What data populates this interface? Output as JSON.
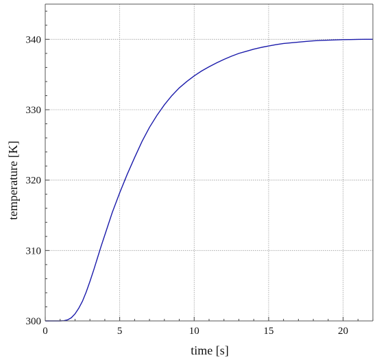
{
  "chart_data": {
    "type": "line",
    "title": "",
    "xlabel": "time [s]",
    "ylabel": "temperature [K]",
    "xlim": [
      0,
      22
    ],
    "ylim": [
      300,
      345
    ],
    "xticks": [
      0,
      5,
      10,
      15,
      20
    ],
    "yticks": [
      300,
      310,
      320,
      330,
      340
    ],
    "grid": true,
    "series": [
      {
        "color": "#1a1aaa",
        "x": [
          0,
          0.5,
          1.0,
          1.25,
          1.5,
          1.75,
          2.0,
          2.25,
          2.5,
          2.75,
          3.0,
          3.25,
          3.5,
          3.75,
          4.0,
          4.5,
          5.0,
          5.5,
          6.0,
          6.5,
          7.0,
          7.5,
          8.0,
          8.5,
          9.0,
          9.5,
          10.0,
          10.5,
          11.0,
          11.5,
          12.0,
          12.5,
          13.0,
          13.5,
          14.0,
          14.5,
          15.0,
          15.5,
          16.0,
          16.5,
          17.0,
          17.5,
          18.0,
          18.5,
          19.0,
          19.5,
          20.0,
          20.5,
          21.0,
          21.5,
          22.0
        ],
        "y": [
          300,
          300,
          300,
          300.03,
          300.15,
          300.45,
          301.0,
          301.8,
          302.8,
          304.1,
          305.6,
          307.2,
          308.9,
          310.6,
          312.2,
          315.4,
          318.2,
          320.8,
          323.2,
          325.5,
          327.5,
          329.2,
          330.7,
          332.0,
          333.1,
          334.0,
          334.8,
          335.5,
          336.1,
          336.65,
          337.15,
          337.6,
          338.0,
          338.3,
          338.6,
          338.85,
          339.05,
          339.25,
          339.4,
          339.5,
          339.6,
          339.7,
          339.78,
          339.84,
          339.88,
          339.92,
          339.95,
          339.97,
          339.99,
          340.0,
          340.0
        ]
      }
    ]
  }
}
